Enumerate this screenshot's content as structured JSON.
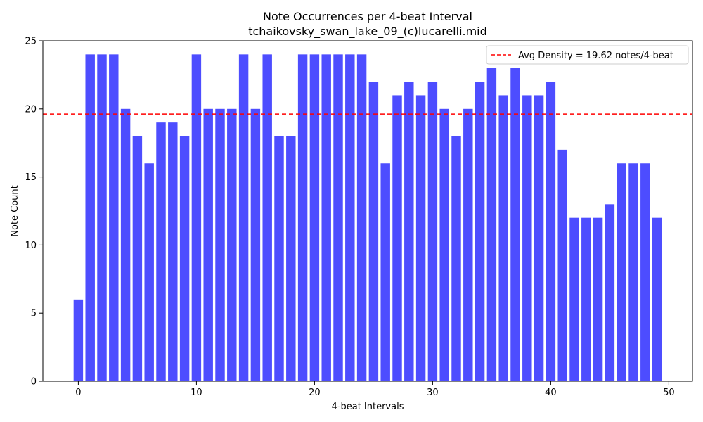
{
  "chart_data": {
    "type": "bar",
    "title": "Note Occurrences per 4-beat Interval",
    "subtitle": "tchaikovsky_swan_lake_09_(c)lucarelli.mid",
    "xlabel": "4-beat Intervals",
    "ylabel": "Note Count",
    "x": [
      0,
      1,
      2,
      3,
      4,
      5,
      6,
      7,
      8,
      9,
      10,
      11,
      12,
      13,
      14,
      15,
      16,
      17,
      18,
      19,
      20,
      21,
      22,
      23,
      24,
      25,
      26,
      27,
      28,
      29,
      30,
      31,
      32,
      33,
      34,
      35,
      36,
      37,
      38,
      39,
      40,
      41,
      42,
      43,
      44,
      45,
      46,
      47,
      48,
      49
    ],
    "values": [
      6,
      24,
      24,
      24,
      20,
      18,
      16,
      19,
      19,
      18,
      24,
      20,
      20,
      20,
      24,
      20,
      24,
      18,
      18,
      24,
      24,
      24,
      24,
      24,
      24,
      22,
      16,
      21,
      22,
      21,
      22,
      20,
      18,
      20,
      22,
      23,
      21,
      23,
      21,
      21,
      22,
      17,
      12,
      12,
      12,
      13,
      16,
      16,
      16,
      12
    ],
    "xlim": [
      -3.0,
      52.0
    ],
    "ylim": [
      0,
      25
    ],
    "xticks": [
      0,
      10,
      20,
      30,
      40,
      50
    ],
    "yticks": [
      0,
      5,
      10,
      15,
      20,
      25
    ],
    "bar_color": "#4d4dff",
    "average_line": {
      "value": 19.62,
      "label": "Avg Density = 19.62 notes/4-beat",
      "color": "#ff0000",
      "style": "dashed"
    },
    "legend_position": "top-right",
    "grid": false
  }
}
